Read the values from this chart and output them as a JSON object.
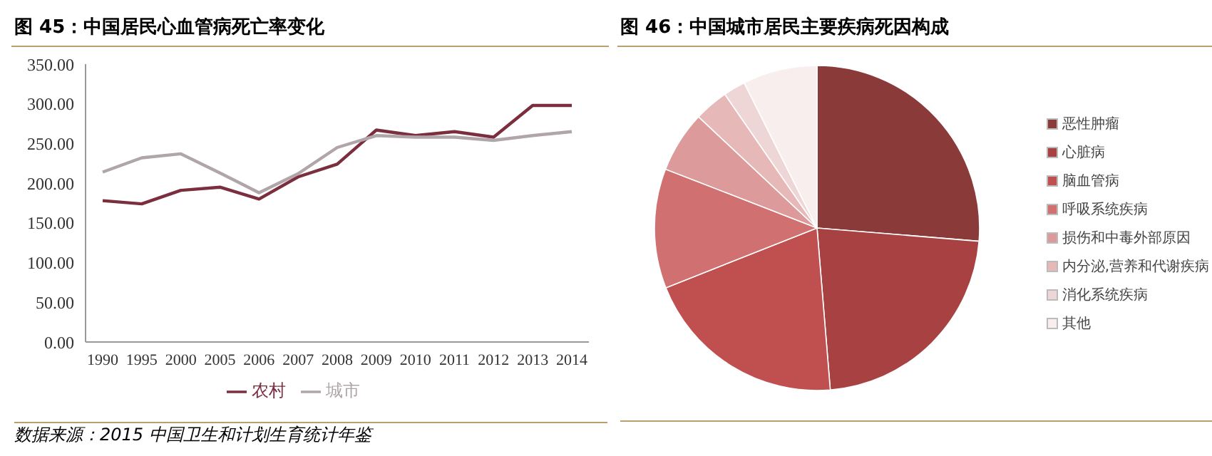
{
  "chart_data": [
    {
      "type": "line",
      "title": "图 45：中国居民心血管病死亡率变化",
      "categories": [
        "1990",
        "1995",
        "2000",
        "2005",
        "2006",
        "2007",
        "2008",
        "2009",
        "2010",
        "2011",
        "2012",
        "2013",
        "2014"
      ],
      "series": [
        {
          "name": "农村",
          "color": "#7a2e3e",
          "values": [
            178,
            174,
            191,
            195,
            180,
            208,
            224,
            267,
            260,
            265,
            258,
            298,
            298
          ]
        },
        {
          "name": "城市",
          "color": "#b0a5a8",
          "values": [
            214,
            232,
            237,
            213,
            188,
            212,
            245,
            260,
            258,
            258,
            254,
            260,
            265
          ]
        }
      ],
      "ylim": [
        0,
        350
      ],
      "yticks": [
        {
          "value": 0,
          "label": "0.00"
        },
        {
          "value": 50,
          "label": "50.00"
        },
        {
          "value": 100,
          "label": "100.00"
        },
        {
          "value": 150,
          "label": "150.00"
        },
        {
          "value": 200,
          "label": "200.00"
        },
        {
          "value": 250,
          "label": "250.00"
        },
        {
          "value": 300,
          "label": "300.00"
        },
        {
          "value": 350,
          "label": "350.00"
        }
      ],
      "grid": false,
      "legend": "bottom",
      "marker": "none",
      "line_style": "solid",
      "annotations": [
        "数据来源：2015 中国卫生和计划生育统计年鉴"
      ]
    },
    {
      "type": "pie",
      "title": "图 46：中国城市居民主要疾病死因构成",
      "categories": [
        "恶性肿瘤",
        "心脏病",
        "脑血管病",
        "呼吸系统疾病",
        "损伤和中毒外部原因",
        "内分泌,营养和代谢疾病",
        "消化系统疾病",
        "其他"
      ],
      "values": [
        26.3,
        22.4,
        20.3,
        11.9,
        6.1,
        3.4,
        2.2,
        7.4
      ],
      "colors": [
        "#8b3a3a",
        "#a84242",
        "#c05050",
        "#d07070",
        "#dc9a9a",
        "#e6b8b8",
        "#efd6d6",
        "#f8eeee"
      ],
      "legend": "right"
    }
  ]
}
